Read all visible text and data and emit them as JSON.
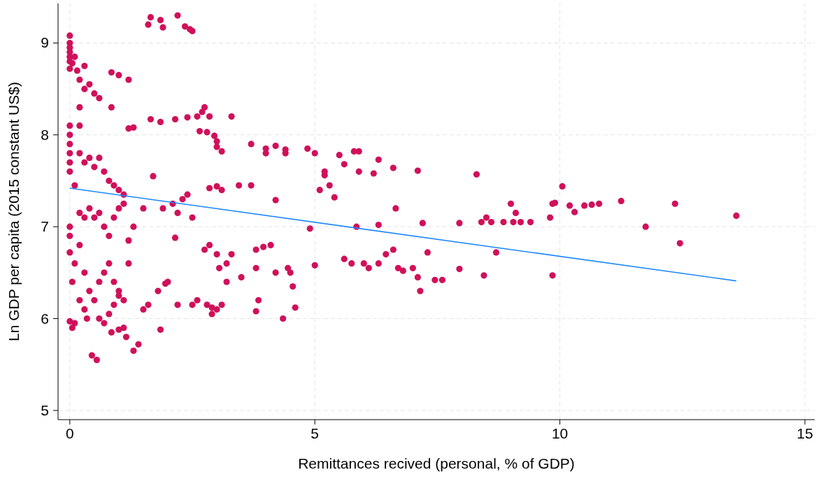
{
  "chart_data": {
    "type": "scatter",
    "xlabel": "Remittances recived (personal, % of GDP)",
    "ylabel": "Ln GDP per capita (2015 constant US$)",
    "xlim": [
      -0.24,
      15.2
    ],
    "ylim": [
      4.9,
      9.43
    ],
    "xticks": [
      0,
      5,
      10,
      15
    ],
    "yticks": [
      5,
      6,
      7,
      8,
      9
    ],
    "grid": true,
    "series": [
      {
        "marker": "circle",
        "color": "#d0105a",
        "x": [
          0,
          0,
          0,
          0,
          0,
          0,
          0,
          0.05,
          0.1,
          0.15,
          0.2,
          0.3,
          0.4,
          0.5,
          0.6,
          0.3,
          0.85,
          1.0,
          1.2,
          0.85,
          0,
          0,
          0,
          0,
          0,
          0,
          0.2,
          0.2,
          0.2,
          0.3,
          0.4,
          0.5,
          0.6,
          0.7,
          0.8,
          0.9,
          1.0,
          1.1,
          0.1,
          0,
          0,
          0,
          0.1,
          0.05,
          0,
          0.05,
          0.1,
          0.2,
          0.3,
          0.4,
          0.5,
          0.6,
          0.7,
          0.8,
          0.9,
          1.0,
          1.1,
          0.2,
          0.3,
          0.4,
          0.5,
          0.6,
          0.7,
          0.8,
          0.9,
          1.0,
          1.1,
          0.2,
          0.3,
          0.35,
          0.6,
          0.7,
          0.8,
          0.9,
          1.0,
          1.1,
          0.85,
          1.0,
          0.45,
          0.55,
          1.3,
          1.4,
          1.15,
          1.2,
          1.3,
          1.2,
          1.6,
          1.65,
          1.85,
          1.9,
          2.2,
          2.35,
          2.45,
          2.5,
          1.3,
          1.2,
          1.65,
          1.85,
          2.15,
          2.4,
          2.6,
          2.7,
          2.75,
          2.85,
          3.3,
          2.65,
          2.8,
          2.95,
          3.0,
          3.0,
          3.1,
          3.7,
          4.0,
          4.0,
          4.2,
          4.4,
          4.4,
          4.85,
          5.0,
          5.2,
          5.2,
          5.5,
          5.8,
          5.9,
          5.6,
          5.9,
          6.2,
          6.3,
          6.6,
          7.1,
          8.3,
          1.7,
          1.5,
          1.9,
          2.1,
          2.2,
          2.3,
          2.4,
          2.5,
          2.15,
          2.85,
          3.0,
          3.1,
          3.45,
          3.7,
          4.2,
          5.1,
          5.3,
          5.4,
          4.9,
          5.85,
          6.3,
          6.65,
          7.2,
          7.95,
          8.4,
          8.5,
          8.6,
          8.85,
          9.05,
          9.1,
          9.2,
          9.0,
          9.4,
          9.8,
          9.85,
          9.9,
          10.05,
          10.2,
          10.3,
          10.5,
          10.65,
          10.8,
          11.25,
          11.75,
          12.35,
          12.45,
          13.6,
          2.75,
          2.85,
          3.0,
          3.2,
          3.3,
          3.8,
          3.95,
          4.1,
          3.5,
          3.8,
          4.2,
          4.45,
          4.5,
          4.55,
          4.6,
          4.35,
          3.85,
          3.8,
          2.8,
          2.9,
          3.0,
          3.1,
          2.6,
          2.5,
          2.2,
          1.5,
          1.6,
          1.8,
          1.95,
          1.85,
          2.0,
          2.9,
          3.2,
          3.05,
          5.0,
          5.6,
          5.75,
          6.0,
          6.1,
          6.3,
          6.45,
          6.6,
          6.7,
          6.8,
          7.0,
          7.1,
          7.15,
          7.3,
          7.45,
          7.6,
          7.95,
          8.45,
          8.7,
          9.85
        ],
        "values": [
          9.08,
          9.0,
          8.95,
          8.9,
          8.85,
          8.8,
          8.72,
          8.78,
          8.85,
          8.7,
          8.6,
          8.75,
          8.55,
          8.45,
          8.4,
          8.5,
          8.68,
          8.65,
          8.6,
          8.3,
          8.1,
          8.0,
          7.9,
          7.8,
          7.7,
          7.6,
          8.3,
          8.1,
          7.8,
          7.7,
          7.75,
          7.65,
          7.75,
          7.6,
          7.5,
          7.45,
          7.4,
          7.35,
          7.45,
          7.0,
          6.9,
          6.72,
          6.6,
          6.4,
          5.97,
          5.9,
          5.95,
          7.15,
          7.1,
          7.2,
          7.1,
          7.15,
          7.0,
          6.9,
          7.1,
          7.2,
          7.25,
          6.8,
          6.5,
          6.3,
          6.2,
          6.4,
          6.5,
          6.6,
          6.4,
          6.3,
          6.2,
          6.2,
          6.1,
          6.0,
          6.0,
          5.95,
          6.05,
          6.15,
          6.25,
          5.9,
          5.85,
          5.88,
          5.6,
          5.55,
          5.65,
          5.72,
          5.8,
          6.85,
          7.0,
          6.6,
          9.2,
          9.28,
          9.25,
          9.17,
          9.3,
          9.18,
          9.15,
          9.13,
          8.08,
          8.07,
          8.17,
          8.14,
          8.17,
          8.19,
          8.2,
          8.25,
          8.3,
          8.2,
          8.2,
          8.04,
          8.03,
          7.99,
          7.93,
          7.87,
          7.82,
          7.9,
          7.85,
          7.8,
          7.88,
          7.84,
          7.8,
          7.85,
          7.8,
          7.6,
          7.56,
          7.78,
          7.82,
          7.82,
          7.68,
          7.6,
          7.58,
          7.73,
          7.64,
          7.61,
          7.57,
          7.55,
          7.2,
          7.2,
          7.25,
          7.15,
          7.3,
          7.35,
          7.1,
          6.88,
          7.42,
          7.44,
          7.4,
          7.45,
          7.45,
          7.29,
          7.4,
          7.45,
          7.32,
          6.98,
          7.0,
          7.02,
          7.2,
          7.04,
          7.04,
          7.05,
          7.1,
          7.05,
          7.05,
          7.05,
          7.15,
          7.05,
          7.25,
          7.05,
          7.1,
          7.25,
          7.26,
          7.44,
          7.23,
          7.16,
          7.23,
          7.24,
          7.25,
          7.28,
          7.0,
          7.25,
          6.82,
          7.12,
          6.75,
          6.8,
          6.7,
          6.6,
          6.7,
          6.75,
          6.78,
          6.8,
          6.45,
          6.55,
          6.5,
          6.55,
          6.5,
          6.35,
          6.12,
          6.0,
          6.2,
          6.08,
          6.15,
          6.12,
          6.1,
          6.15,
          6.2,
          6.15,
          6.15,
          6.1,
          6.15,
          6.3,
          6.38,
          5.88,
          6.4,
          6.05,
          6.4,
          6.55,
          6.58,
          6.65,
          6.6,
          6.6,
          6.55,
          6.6,
          6.7,
          6.75,
          6.55,
          6.52,
          6.55,
          6.45,
          6.3,
          6.72,
          6.42,
          6.42,
          6.54,
          6.47,
          6.72,
          6.47
        ]
      },
      {
        "type": "line",
        "marker": "none",
        "color": "#1e88ff",
        "x": [
          0,
          13.6
        ],
        "values": [
          7.42,
          6.41
        ]
      }
    ]
  }
}
